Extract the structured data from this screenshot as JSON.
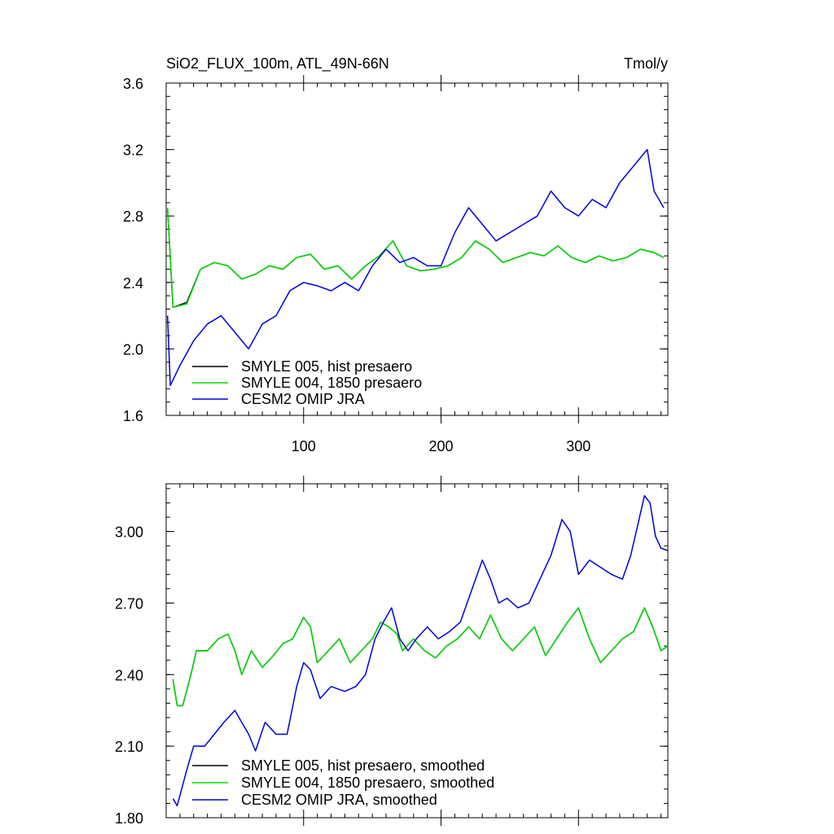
{
  "chart_data": [
    {
      "type": "line",
      "title": "SiO2_FLUX_100m, ATL_49N-66N",
      "units": "Tmol/y",
      "xlabel": "",
      "ylabel": "",
      "xlim": [
        0,
        365
      ],
      "ylim": [
        1.6,
        3.6
      ],
      "xticks": [
        100,
        200,
        300
      ],
      "yticks": [
        1.6,
        2.0,
        2.4,
        2.8,
        3.2,
        3.6
      ],
      "ytick_labels": [
        "1.6",
        "2.0",
        "2.4",
        "2.8",
        "3.2",
        "3.6"
      ],
      "legend_position": "bottom-left",
      "series": [
        {
          "name": "SMYLE 005, hist presaero",
          "color": "#000000",
          "x": [
            1,
            5,
            15,
            25,
            35,
            45,
            55,
            65,
            75,
            85,
            95,
            105,
            115,
            125,
            135,
            145,
            155,
            165,
            175,
            185,
            195,
            205,
            215,
            225,
            235,
            245,
            255,
            265,
            275,
            285,
            295,
            305,
            315,
            325,
            335,
            345,
            355,
            362
          ],
          "y": [
            2.85,
            2.25,
            2.28,
            2.48,
            2.52,
            2.5,
            2.42,
            2.45,
            2.5,
            2.48,
            2.55,
            2.57,
            2.48,
            2.5,
            2.42,
            2.5,
            2.56,
            2.65,
            2.5,
            2.47,
            2.48,
            2.5,
            2.55,
            2.65,
            2.6,
            2.52,
            2.55,
            2.58,
            2.56,
            2.62,
            2.55,
            2.52,
            2.56,
            2.53,
            2.55,
            2.6,
            2.58,
            2.55
          ]
        },
        {
          "name": "SMYLE 004, 1850 presaero",
          "color": "#00dd00",
          "x": [
            1,
            5,
            15,
            25,
            35,
            45,
            55,
            65,
            75,
            85,
            95,
            105,
            115,
            125,
            135,
            145,
            155,
            165,
            175,
            185,
            195,
            205,
            215,
            225,
            235,
            245,
            255,
            265,
            275,
            285,
            295,
            305,
            315,
            325,
            335,
            345,
            355,
            362
          ],
          "y": [
            2.85,
            2.25,
            2.27,
            2.48,
            2.52,
            2.5,
            2.42,
            2.45,
            2.5,
            2.48,
            2.55,
            2.57,
            2.48,
            2.5,
            2.42,
            2.5,
            2.56,
            2.65,
            2.5,
            2.47,
            2.48,
            2.5,
            2.55,
            2.65,
            2.6,
            2.52,
            2.55,
            2.58,
            2.56,
            2.62,
            2.55,
            2.52,
            2.56,
            2.53,
            2.55,
            2.6,
            2.58,
            2.55
          ]
        },
        {
          "name": "CESM2 OMIP JRA",
          "color": "#0000dd",
          "x": [
            1,
            3,
            10,
            20,
            30,
            40,
            50,
            60,
            70,
            80,
            90,
            100,
            110,
            120,
            130,
            140,
            150,
            160,
            170,
            180,
            190,
            200,
            210,
            220,
            230,
            240,
            250,
            260,
            270,
            280,
            290,
            300,
            310,
            320,
            330,
            340,
            350,
            355,
            362
          ],
          "y": [
            2.2,
            1.78,
            1.9,
            2.05,
            2.15,
            2.2,
            2.1,
            2.0,
            2.15,
            2.2,
            2.35,
            2.4,
            2.38,
            2.35,
            2.4,
            2.35,
            2.5,
            2.6,
            2.52,
            2.55,
            2.5,
            2.5,
            2.7,
            2.85,
            2.75,
            2.65,
            2.7,
            2.75,
            2.8,
            2.95,
            2.85,
            2.8,
            2.9,
            2.85,
            3.0,
            3.1,
            3.2,
            2.95,
            2.85
          ]
        }
      ]
    },
    {
      "type": "line",
      "title": "",
      "xlabel": "",
      "ylabel": "",
      "xlim": [
        0,
        365
      ],
      "ylim": [
        1.8,
        3.2
      ],
      "yticks": [
        1.8,
        2.1,
        2.4,
        2.7,
        3.0
      ],
      "ytick_labels": [
        "1.80",
        "2.10",
        "2.40",
        "2.70",
        "3.00"
      ],
      "legend_position": "bottom-left",
      "series": [
        {
          "name": "SMYLE 005, hist presaero, smoothed",
          "color": "#000000",
          "x": [
            5,
            8,
            12,
            18,
            22,
            30,
            38,
            45,
            50,
            55,
            62,
            70,
            78,
            85,
            92,
            100,
            105,
            110,
            118,
            126,
            134,
            142,
            150,
            156,
            162,
            168,
            172,
            180,
            188,
            196,
            204,
            212,
            220,
            228,
            236,
            244,
            252,
            260,
            268,
            276,
            284,
            292,
            300,
            308,
            316,
            324,
            332,
            340,
            348,
            354,
            360,
            365
          ],
          "y": [
            2.38,
            2.27,
            2.27,
            2.4,
            2.5,
            2.5,
            2.55,
            2.57,
            2.5,
            2.4,
            2.5,
            2.43,
            2.48,
            2.53,
            2.55,
            2.64,
            2.6,
            2.45,
            2.5,
            2.55,
            2.45,
            2.5,
            2.55,
            2.62,
            2.6,
            2.57,
            2.5,
            2.55,
            2.5,
            2.47,
            2.52,
            2.55,
            2.6,
            2.55,
            2.65,
            2.55,
            2.5,
            2.55,
            2.6,
            2.48,
            2.55,
            2.62,
            2.68,
            2.55,
            2.45,
            2.5,
            2.55,
            2.58,
            2.68,
            2.6,
            2.5,
            2.52
          ]
        },
        {
          "name": "SMYLE 004, 1850 presaero, smoothed",
          "color": "#00dd00",
          "x": [
            5,
            8,
            12,
            18,
            22,
            30,
            38,
            45,
            50,
            55,
            62,
            70,
            78,
            85,
            92,
            100,
            105,
            110,
            118,
            126,
            134,
            142,
            150,
            156,
            162,
            168,
            172,
            180,
            188,
            196,
            204,
            212,
            220,
            228,
            236,
            244,
            252,
            260,
            268,
            276,
            284,
            292,
            300,
            308,
            316,
            324,
            332,
            340,
            348,
            354,
            360,
            365
          ],
          "y": [
            2.38,
            2.27,
            2.27,
            2.4,
            2.5,
            2.5,
            2.55,
            2.57,
            2.5,
            2.4,
            2.5,
            2.43,
            2.48,
            2.53,
            2.55,
            2.64,
            2.6,
            2.45,
            2.5,
            2.55,
            2.45,
            2.5,
            2.55,
            2.62,
            2.6,
            2.57,
            2.5,
            2.55,
            2.5,
            2.47,
            2.52,
            2.55,
            2.6,
            2.55,
            2.65,
            2.55,
            2.5,
            2.55,
            2.6,
            2.48,
            2.55,
            2.62,
            2.68,
            2.55,
            2.45,
            2.5,
            2.55,
            2.58,
            2.68,
            2.6,
            2.5,
            2.52
          ]
        },
        {
          "name": "CESM2 OMIP JRA, smoothed",
          "color": "#0000dd",
          "x": [
            5,
            8,
            15,
            20,
            28,
            35,
            42,
            50,
            55,
            60,
            65,
            72,
            80,
            88,
            95,
            100,
            105,
            112,
            120,
            130,
            138,
            145,
            152,
            158,
            164,
            170,
            176,
            182,
            190,
            198,
            206,
            214,
            222,
            230,
            236,
            242,
            248,
            256,
            264,
            272,
            280,
            288,
            294,
            300,
            308,
            316,
            324,
            332,
            338,
            344,
            348,
            352,
            356,
            360,
            365
          ],
          "y": [
            1.88,
            1.85,
            2.0,
            2.1,
            2.1,
            2.15,
            2.2,
            2.25,
            2.2,
            2.15,
            2.08,
            2.2,
            2.15,
            2.15,
            2.35,
            2.45,
            2.42,
            2.3,
            2.35,
            2.33,
            2.35,
            2.4,
            2.55,
            2.62,
            2.68,
            2.55,
            2.5,
            2.55,
            2.6,
            2.55,
            2.58,
            2.62,
            2.75,
            2.88,
            2.8,
            2.7,
            2.72,
            2.68,
            2.7,
            2.8,
            2.9,
            3.05,
            3.0,
            2.82,
            2.88,
            2.85,
            2.82,
            2.8,
            2.9,
            3.05,
            3.15,
            3.12,
            2.98,
            2.93,
            2.92
          ]
        }
      ]
    }
  ]
}
